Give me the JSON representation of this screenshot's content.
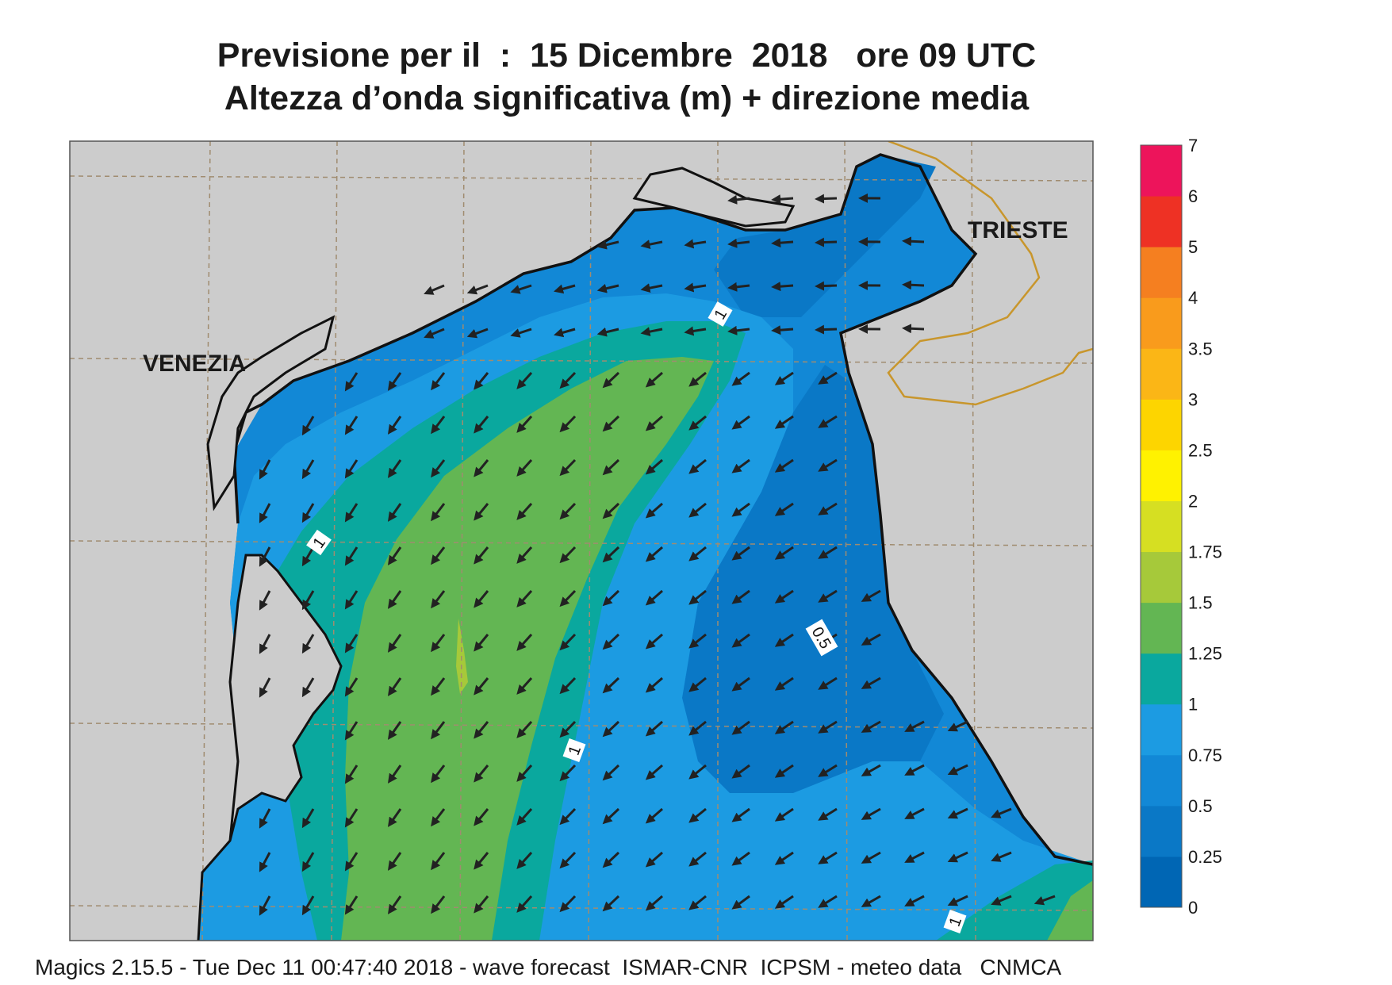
{
  "title": {
    "line1": "Previsione per il  :  15 Dicembre  2018   ore 09 UTC",
    "line2": "Altezza d’onda significativa (m) + direzione media"
  },
  "cities": [
    {
      "name": "VENEZIA"
    },
    {
      "name": "TRIESTE"
    }
  ],
  "contour_labels": [
    "1",
    "1",
    "0.5",
    "1",
    "1"
  ],
  "legend": {
    "labels": [
      "0",
      "0.25",
      "0.5",
      "0.75",
      "1",
      "1.25",
      "1.5",
      "1.75",
      "2",
      "2.5",
      "3",
      "3.5",
      "4",
      "5",
      "6",
      "7"
    ],
    "colors": [
      "#0066b4",
      "#0a78c6",
      "#1288d6",
      "#1c9be2",
      "#0aa89e",
      "#63b653",
      "#a6c93a",
      "#d6df22",
      "#fff200",
      "#fdd500",
      "#fbb616",
      "#f99b1c",
      "#f57f20",
      "#ee3124",
      "#ed145b"
    ]
  },
  "colors": {
    "land": "#cccccc",
    "sea_025_05": "#0a78c6",
    "sea_05_075": "#1288d6",
    "sea_075_1": "#1c9be2",
    "sea_1_125": "#0aa89e",
    "sea_125_15": "#63b653",
    "sea_15_175": "#a6c93a",
    "border": "#c8962c"
  },
  "footer": "Magics 2.15.5 - Tue Dec 11 00:47:40 2018 - wave forecast  ISMAR-CNR  ICPSM - meteo data   CNMCA"
}
